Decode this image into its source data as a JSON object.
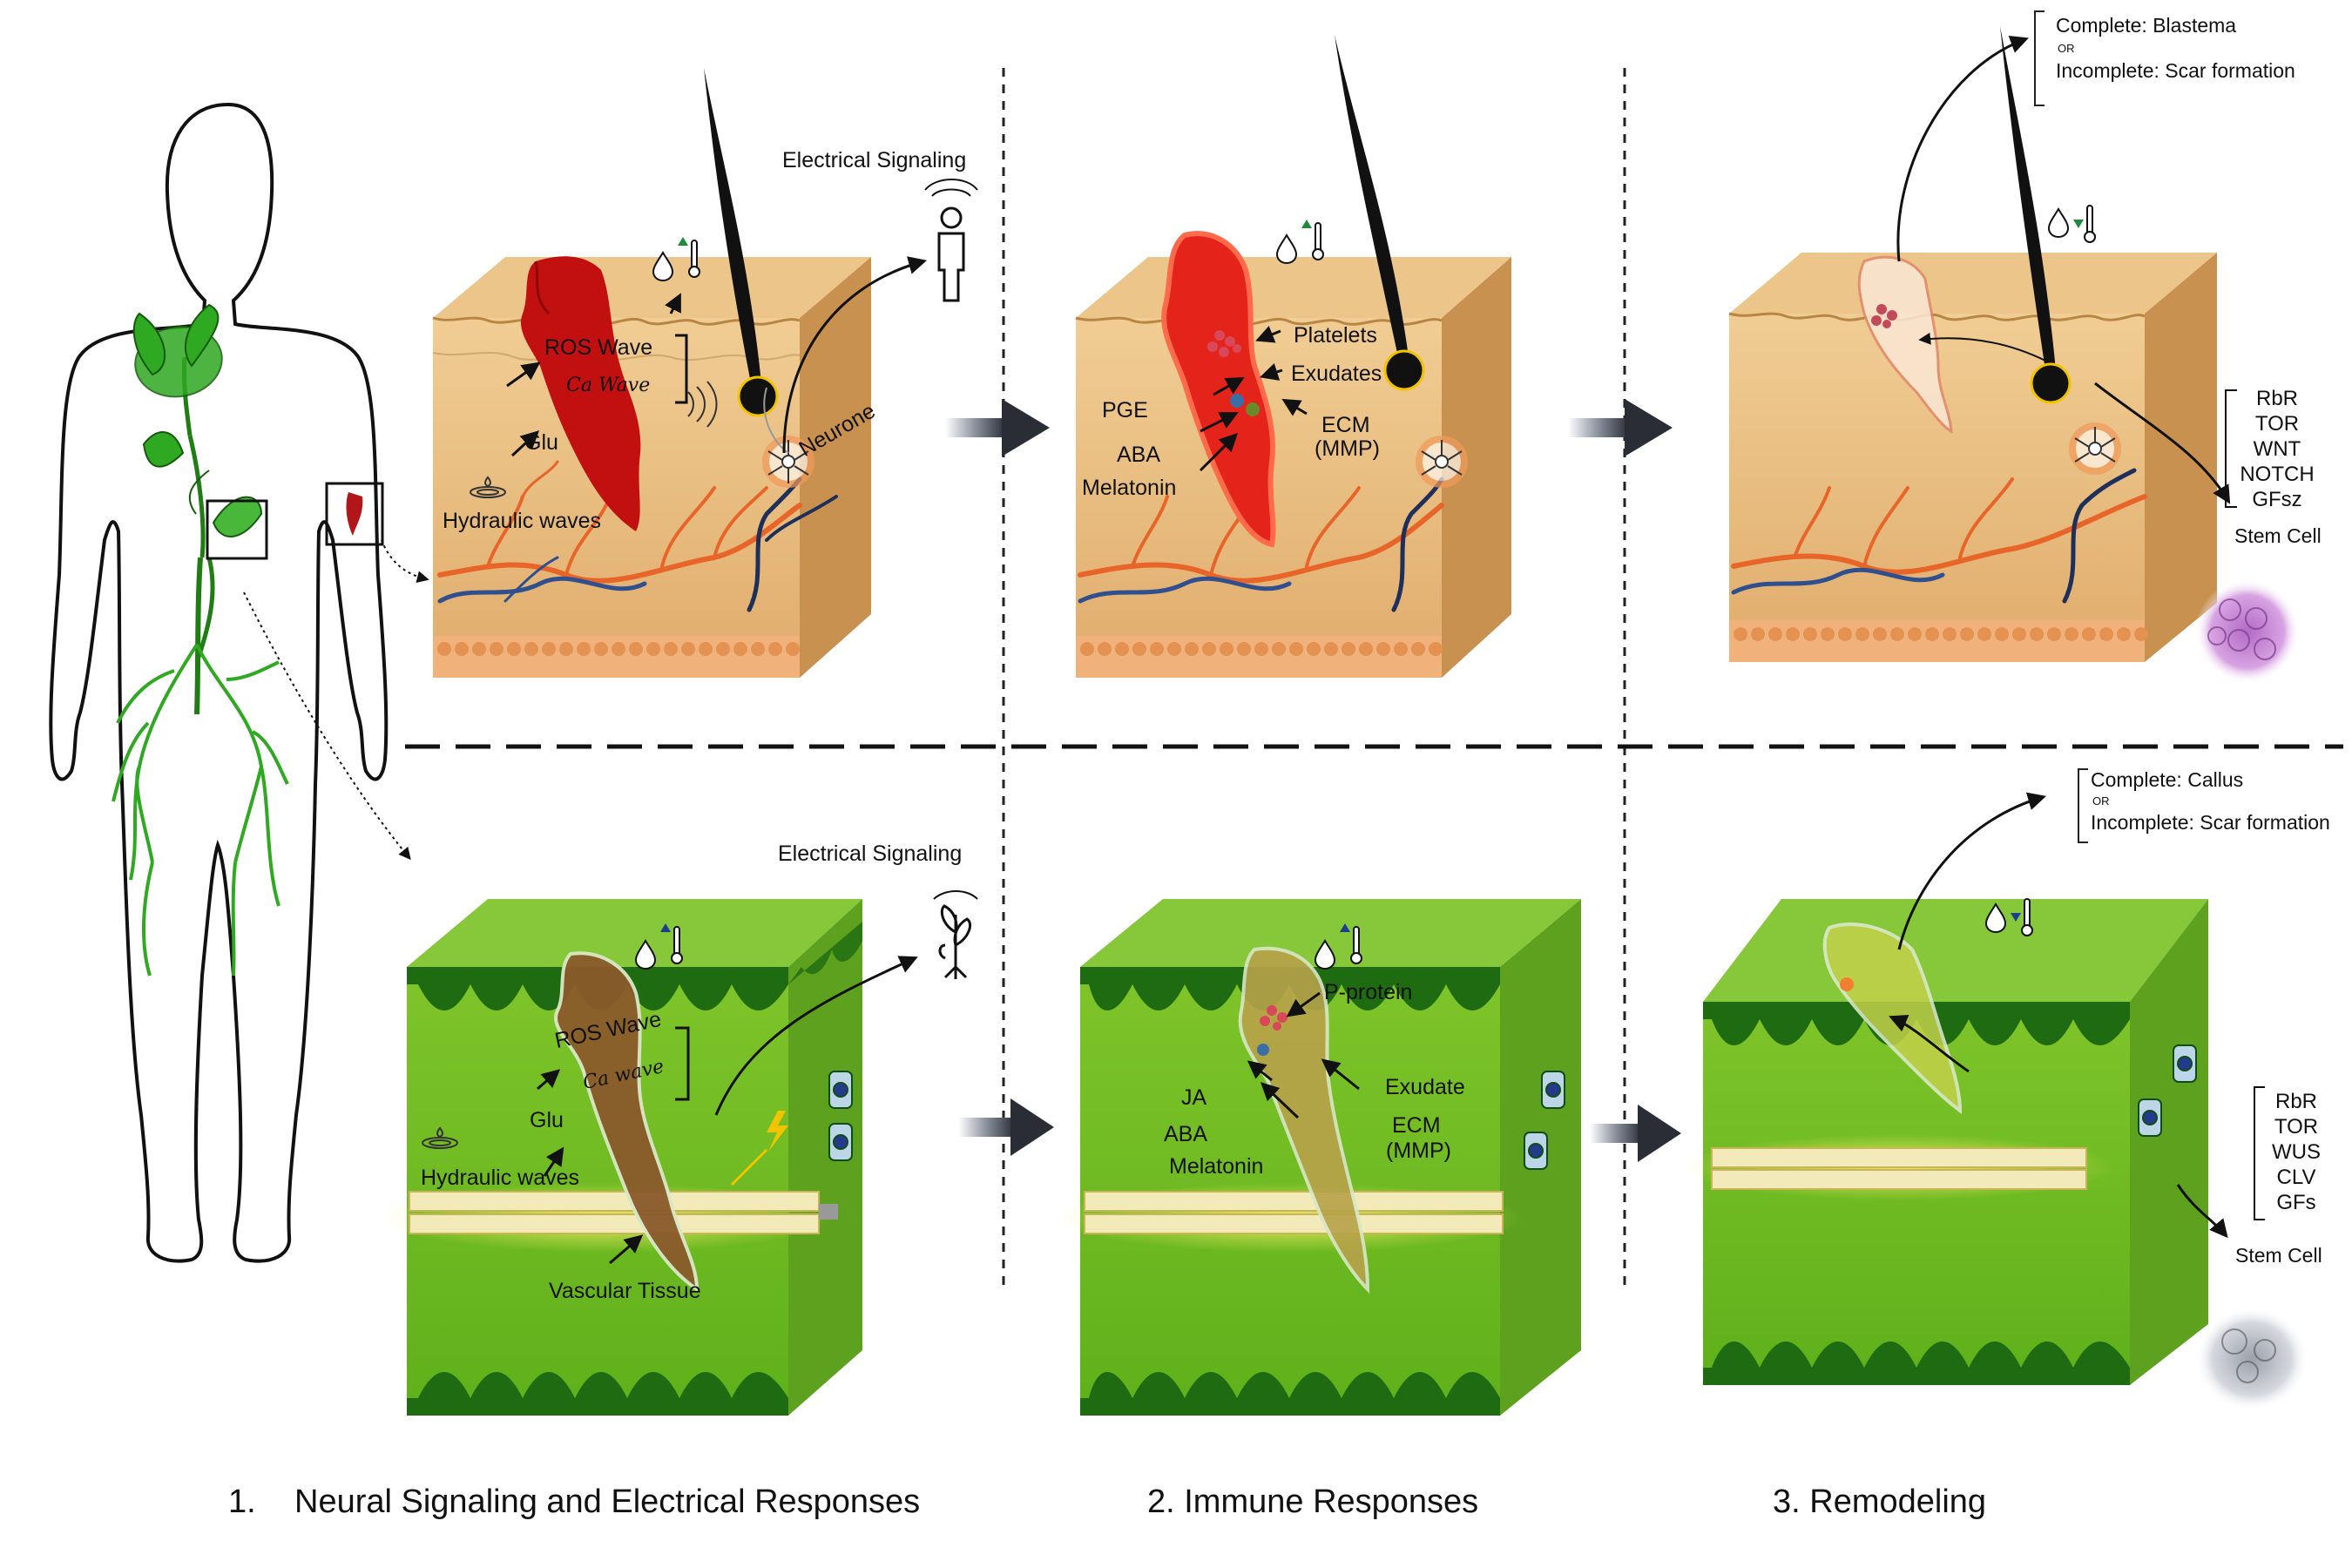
{
  "section_titles": [
    "1.",
    "Neural Signaling and Electrical Responses",
    "2. Immune Responses",
    "3. Remodeling"
  ],
  "human_row": {
    "electrical_signaling": "Electrical Signaling",
    "panel1": {
      "ros_wave": "ROS Wave",
      "ca_wave": "Ca Wave",
      "glu": "Glu",
      "hydraulic_waves": "Hydraulic waves",
      "neurone": "Neurone"
    },
    "panel2": {
      "platelets": "Platelets",
      "exudates": "Exudates",
      "pge": "PGE",
      "aba": "ABA",
      "melatonin": "Melatonin",
      "ecm": "ECM",
      "mmp": "(MMP)"
    },
    "outcome": {
      "complete": "Complete: Blastema",
      "or": "OR",
      "incomplete": "Incomplete: Scar formation"
    },
    "pathways": [
      "RbR",
      "TOR",
      "WNT",
      "NOTCH",
      "GFsz"
    ],
    "stem_cell": "Stem Cell"
  },
  "plant_row": {
    "electrical_signaling": "Electrical  Signaling",
    "panel1": {
      "ros_wave": "ROS Wave",
      "ca_wave": "Ca wave",
      "glu": "Glu",
      "hydraulic_waves": "Hydraulic waves",
      "vascular_tissue": "Vascular Tissue"
    },
    "panel2": {
      "p_protein": "P-protein",
      "exudate": "Exudate",
      "ja": "JA",
      "aba": "ABA",
      "melatonin": "Melatonin",
      "ecm": "ECM",
      "mmp": "(MMP)"
    },
    "outcome": {
      "complete": "Complete: Callus",
      "or": "OR",
      "incomplete": "Incomplete: Scar formation"
    },
    "pathways": [
      "RbR",
      "TOR",
      "WUS",
      "CLV",
      "GFs"
    ],
    "stem_cell": "Stem Cell"
  },
  "icons": [
    "human-figure-icon",
    "person-signal-icon",
    "plant-signal-icon",
    "ph-drop-icon",
    "thermometer-icon",
    "stem-cell-icon",
    "ripple-icon"
  ],
  "colors": {
    "skin": "#e2b072",
    "skin_side": "#c8914f",
    "wound": "#c1100f",
    "vessel_orange": "#e8652a",
    "vessel_blue": "#2f4f8f",
    "leaf_green": "#6bbf1f",
    "leaf_dark": "#1f6b12",
    "plant_wound": "#8a5a2b",
    "vascular": "#f2e26a",
    "arrow": "#3a3a44"
  }
}
